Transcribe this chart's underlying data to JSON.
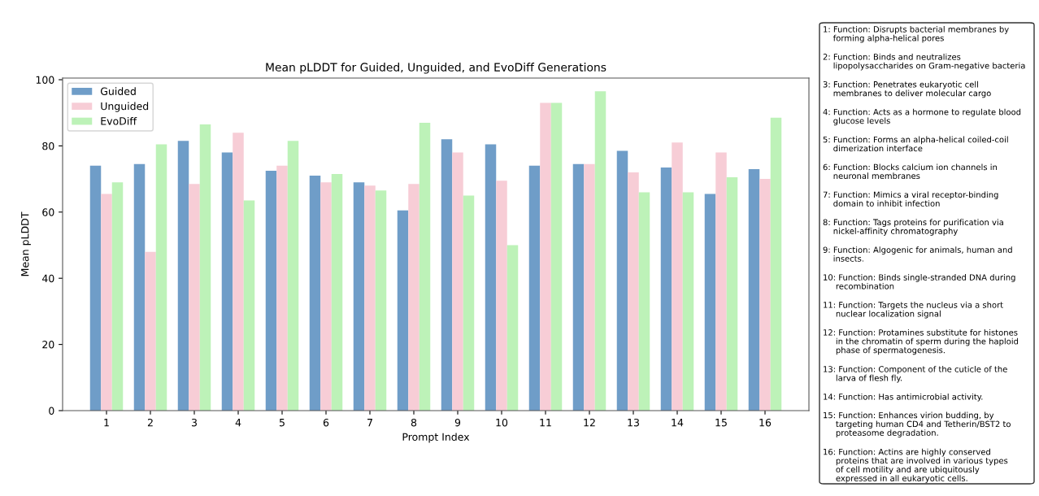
{
  "chart_data": {
    "type": "bar",
    "title": "Mean pLDDT for Guided, Unguided, and EvoDiff Generations",
    "xlabel": "Prompt Index",
    "ylabel": "Mean pLDDT",
    "categories": [
      "1",
      "2",
      "3",
      "4",
      "5",
      "6",
      "7",
      "8",
      "9",
      "10",
      "11",
      "12",
      "13",
      "14",
      "15",
      "16"
    ],
    "series": [
      {
        "name": "Guided",
        "color": "#6f9dc8",
        "values": [
          74,
          74.5,
          81.5,
          78,
          72.5,
          71,
          69,
          60.5,
          82,
          80.5,
          74,
          74.5,
          78.5,
          73.5,
          65.5,
          73
        ]
      },
      {
        "name": "Unguided",
        "color": "#f7cdd6",
        "values": [
          65.5,
          48,
          68.5,
          84,
          74,
          69,
          68,
          68.5,
          78,
          69.5,
          93,
          74.5,
          72,
          81,
          78,
          70
        ]
      },
      {
        "name": "EvoDiff",
        "color": "#bdf2b8",
        "values": [
          69,
          80.5,
          86.5,
          63.5,
          81.5,
          71.5,
          66.5,
          87,
          65,
          50,
          93,
          96.5,
          66,
          66,
          70.5,
          88.5
        ]
      }
    ],
    "ylim": [
      0,
      100.5
    ],
    "yticks": [
      0,
      20,
      40,
      60,
      80,
      100
    ],
    "grid": false,
    "legend": "top left",
    "annotations": [
      "1: Function: Disrupts bacterial membranes by\n    forming alpha-helical pores",
      "2: Function: Binds and neutralizes\n    lipopolysaccharides on Gram-negative bacteria",
      "3: Function: Penetrates eukaryotic cell\n    membranes to deliver molecular cargo",
      "4: Function: Acts as a hormone to regulate blood\n    glucose levels",
      "5: Function: Forms an alpha-helical coiled-coil\n    dimerization interface",
      "6: Function: Blocks calcium ion channels in\n    neuronal membranes",
      "7: Function: Mimics a viral receptor-binding\n    domain to inhibit infection",
      "8: Function: Tags proteins for purification via\n    nickel-affinity chromatography",
      "9: Function: Algogenic for animals, human and\n    insects.",
      "10: Function: Binds single-stranded DNA during\n     recombination",
      "11: Function: Targets the nucleus via a short\n     nuclear localization signal",
      "12: Function: Protamines substitute for histones\n     in the chromatin of sperm during the haploid\n     phase of spermatogenesis.",
      "13: Function: Component of the cuticle of the\n     larva of flesh fly.",
      "14: Function: Has antimicrobial activity.",
      "15: Function: Enhances virion budding, by\n     targeting human CD4 and Tetherin/BST2 to\n     proteasome degradation.",
      "16: Function: Actins are highly conserved\n     proteins that are involved in various types\n     of cell motility and are ubiquitously\n     expressed in all eukaryotic cells."
    ]
  }
}
